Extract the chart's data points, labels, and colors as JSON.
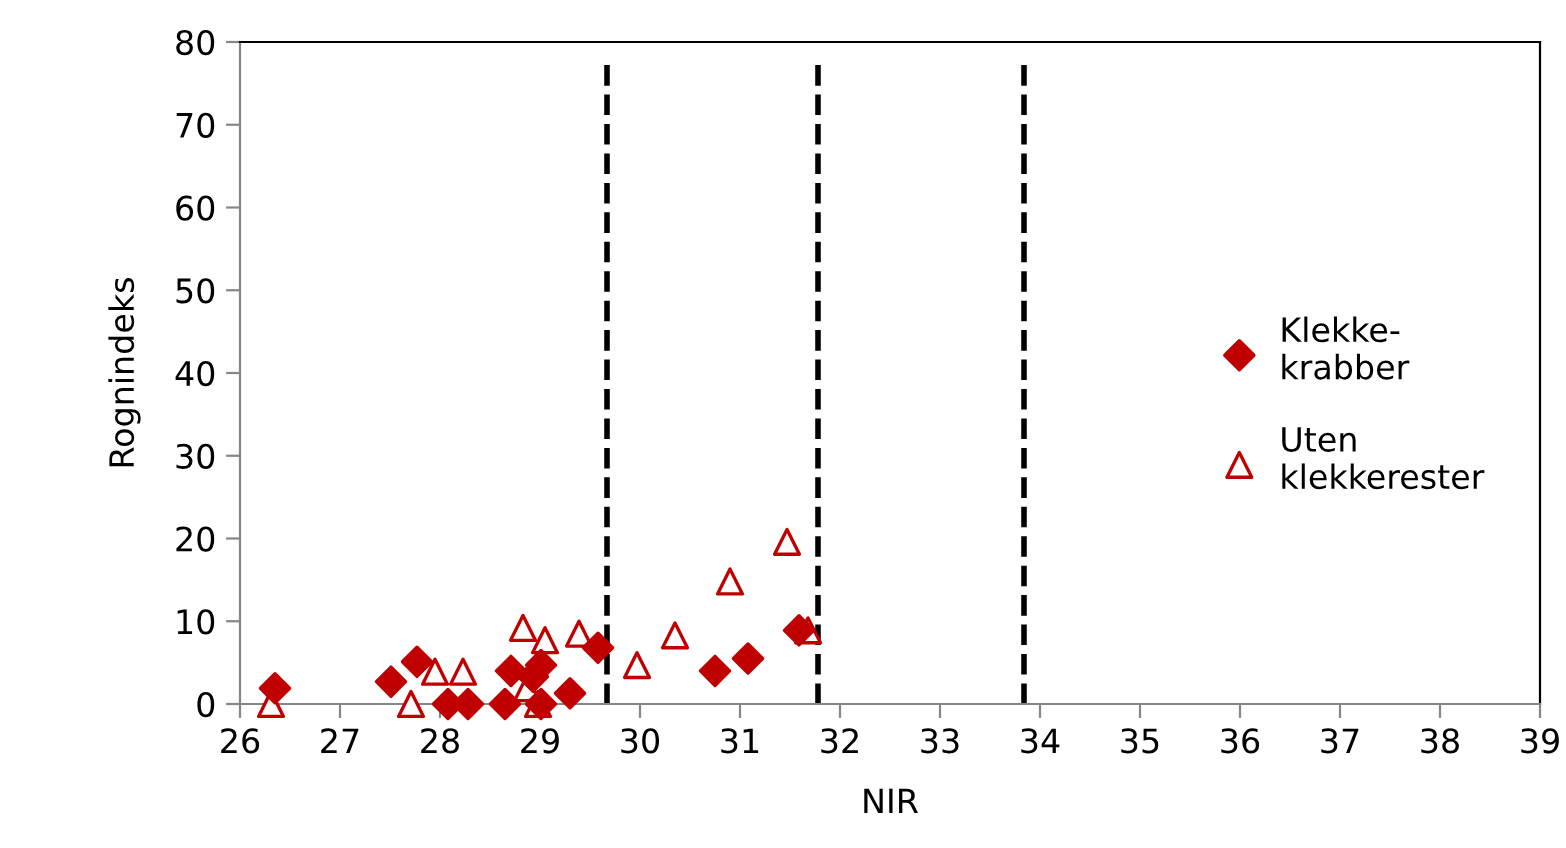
{
  "chart_data": {
    "type": "scatter",
    "xlabel": "NIR",
    "ylabel": "Rognindeks",
    "xlim": [
      26,
      39
    ],
    "ylim": [
      0,
      80
    ],
    "xticks": [
      26,
      27,
      28,
      29,
      30,
      31,
      32,
      33,
      34,
      35,
      36,
      37,
      38,
      39
    ],
    "yticks": [
      0,
      10,
      20,
      30,
      40,
      50,
      60,
      70,
      80
    ],
    "grid": false,
    "legend": "right",
    "series": [
      {
        "name": "Klekke-\nkrabber",
        "color": "#c00000",
        "marker": "diamond",
        "x": [
          26.35,
          27.51,
          27.77,
          28.08,
          28.28,
          28.65,
          28.71,
          28.93,
          29.01,
          29.01,
          29.3,
          29.58,
          30.75,
          31.08,
          31.59
        ],
        "values": [
          1.9,
          2.7,
          5.1,
          0,
          0,
          0,
          4.0,
          3.3,
          4.7,
          0,
          1.3,
          6.8,
          4.0,
          5.5,
          8.9
        ]
      },
      {
        "name": "Uten\nklekkerester",
        "color": "#c00000",
        "marker": "triangle",
        "x": [
          26.31,
          27.71,
          27.95,
          28.23,
          28.83,
          28.87,
          29.05,
          28.98,
          29.39,
          29.97,
          30.35,
          30.9,
          31.47,
          31.68
        ],
        "values": [
          0,
          0,
          3.9,
          3.9,
          9.2,
          1.9,
          7.7,
          0,
          8.5,
          4.7,
          8.3,
          14.8,
          19.6,
          8.9
        ]
      }
    ],
    "ref_lines": [
      {
        "axis": "x",
        "value": 29.67,
        "color": "#000000",
        "line_style": "dashed"
      },
      {
        "axis": "x",
        "value": 31.78,
        "color": "#000000",
        "line_style": "dashed"
      },
      {
        "axis": "x",
        "value": 33.84,
        "color": "#000000",
        "line_style": "dashed"
      }
    ]
  }
}
